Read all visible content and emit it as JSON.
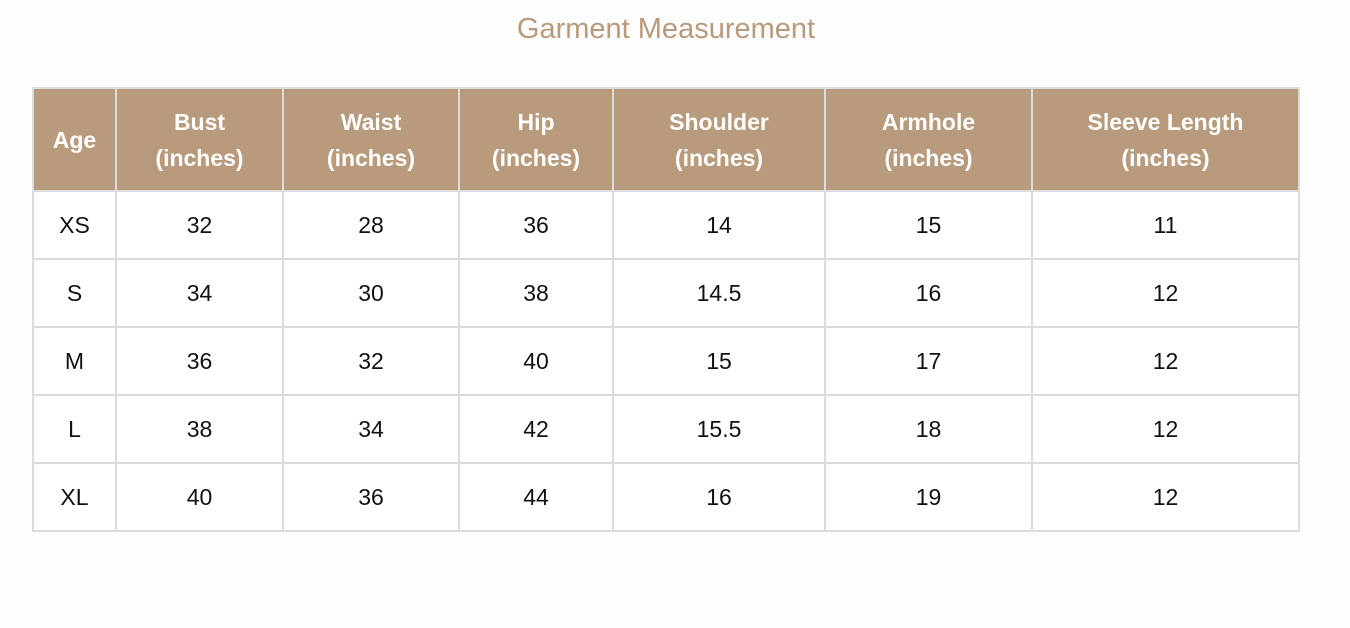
{
  "title": "Garment Measurement",
  "colors": {
    "header_bg": "#b89a7c",
    "title": "#b89a7c"
  },
  "headers": [
    [
      "Age",
      ""
    ],
    [
      "Bust",
      "(inches)"
    ],
    [
      "Waist",
      "(inches)"
    ],
    [
      "Hip",
      "(inches)"
    ],
    [
      "Shoulder",
      "(inches)"
    ],
    [
      "Armhole",
      "(inches)"
    ],
    [
      "Sleeve Length",
      "(inches)"
    ]
  ],
  "rows": [
    [
      "XS",
      "32",
      "28",
      "36",
      "14",
      "15",
      "11"
    ],
    [
      "S",
      "34",
      "30",
      "38",
      "14.5",
      "16",
      "12"
    ],
    [
      "M",
      "36",
      "32",
      "40",
      "15",
      "17",
      "12"
    ],
    [
      "L",
      "38",
      "34",
      "42",
      "15.5",
      "18",
      "12"
    ],
    [
      "XL",
      "40",
      "36",
      "44",
      "16",
      "19",
      "12"
    ]
  ]
}
